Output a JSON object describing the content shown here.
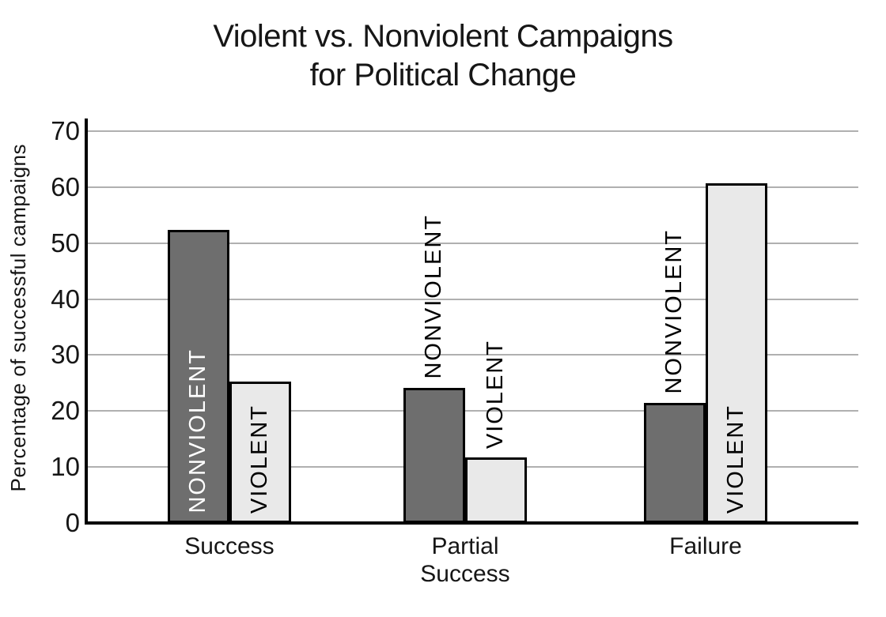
{
  "chart_data": {
    "type": "bar",
    "title": "Violent vs. Nonviolent Campaigns for Political Change",
    "title_lines": [
      "Violent vs. Nonviolent Campaigns",
      "for Political Change"
    ],
    "ylabel": "Percentage of successful campaigns",
    "xlabel": "",
    "ylim": [
      0,
      70
    ],
    "yticks": [
      0,
      10,
      20,
      30,
      40,
      50,
      60,
      70
    ],
    "grid": "horizontal-only",
    "legend": "labels-printed-on-bars",
    "bar_label_orientation": "vertical-bottom-to-top",
    "categories": [
      "Success",
      "Partial Success",
      "Failure"
    ],
    "category_label_lines": [
      [
        "Success"
      ],
      [
        "Partial",
        "Success"
      ],
      [
        "Failure"
      ]
    ],
    "series": [
      {
        "name": "NONVIOLENT",
        "color": "#6e6e6e",
        "values": [
          52.3,
          24.2,
          21.5
        ],
        "label_styles": [
          {
            "position": "inside",
            "color": "#ffffff"
          },
          {
            "position": "above",
            "color": "#000000"
          },
          {
            "position": "above",
            "color": "#000000"
          }
        ]
      },
      {
        "name": "VIOLENT",
        "color": "#e9e9e9",
        "values": [
          25.3,
          11.7,
          60.7
        ],
        "label_styles": [
          {
            "position": "inside",
            "color": "#000000"
          },
          {
            "position": "above",
            "color": "#000000"
          },
          {
            "position": "inside",
            "color": "#000000"
          }
        ]
      }
    ],
    "colors": {
      "background": "#ffffff",
      "axis": "#000000",
      "grid": "#b0b0b0",
      "title_text": "#161616"
    }
  }
}
